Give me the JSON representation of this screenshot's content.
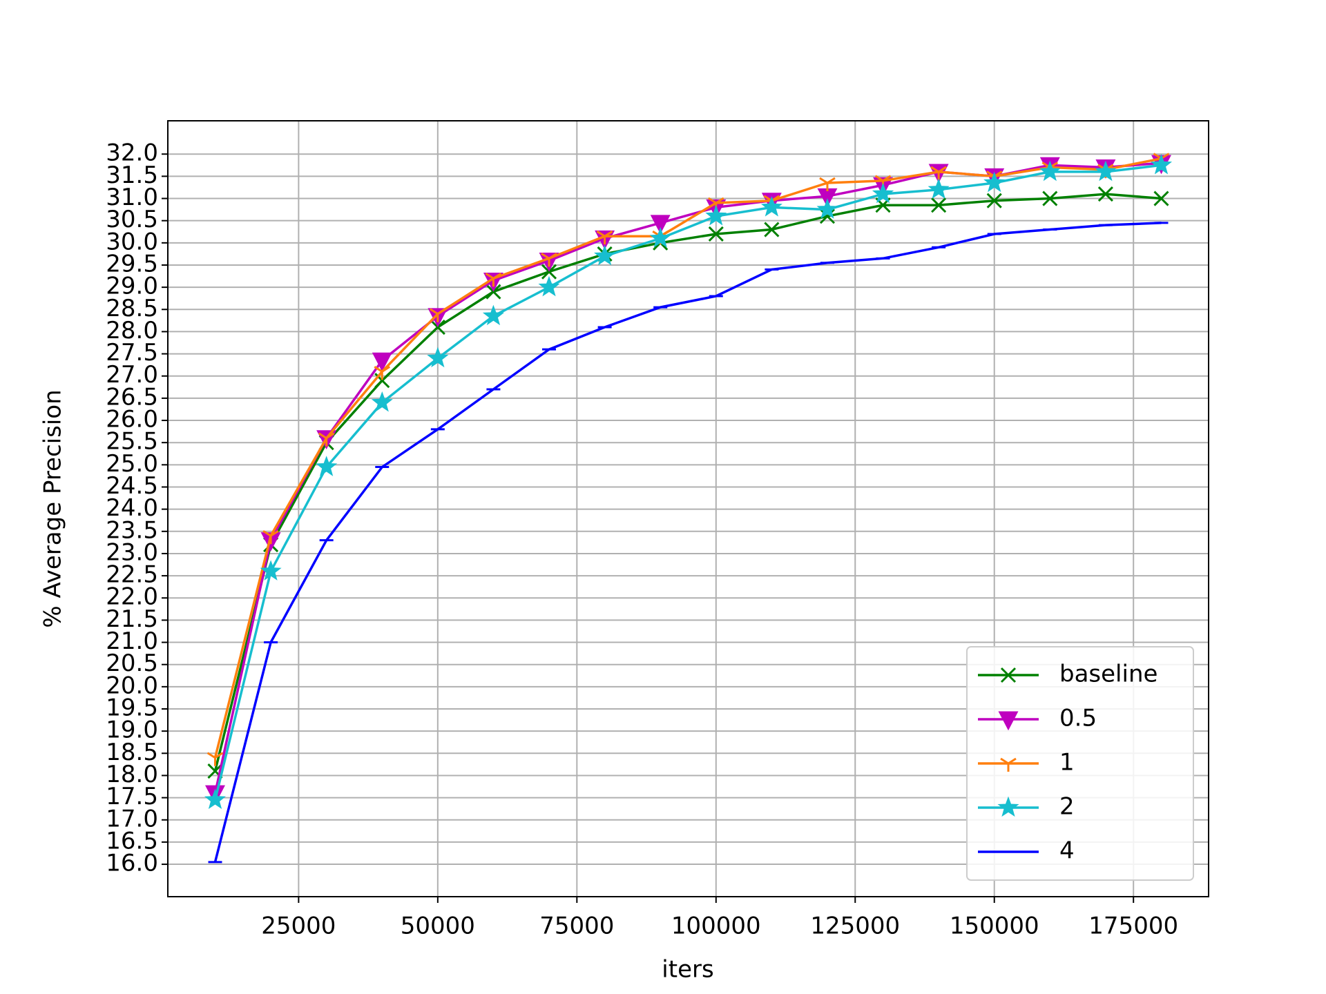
{
  "chart_data": {
    "type": "line",
    "xlabel": "iters",
    "ylabel": "% Average Precision",
    "x": [
      10000,
      20000,
      30000,
      40000,
      50000,
      60000,
      70000,
      80000,
      90000,
      100000,
      110000,
      120000,
      130000,
      140000,
      150000,
      160000,
      170000,
      180000
    ],
    "series": [
      {
        "name": "baseline",
        "color": "#008000",
        "marker": "x",
        "values": [
          18.1,
          23.2,
          25.5,
          26.9,
          28.1,
          28.9,
          29.35,
          29.75,
          30.0,
          30.2,
          30.3,
          30.6,
          30.85,
          30.85,
          30.95,
          31.0,
          31.1,
          31.0
        ]
      },
      {
        "name": "0.5",
        "color": "#bf00bf",
        "marker": "triangle_down",
        "values": [
          17.6,
          23.3,
          25.6,
          27.35,
          28.35,
          29.15,
          29.6,
          30.1,
          30.45,
          30.8,
          30.95,
          31.05,
          31.3,
          31.6,
          31.5,
          31.75,
          31.7,
          31.8
        ]
      },
      {
        "name": "1",
        "color": "#ff7f0e",
        "marker": "tri_down",
        "values": [
          18.4,
          23.4,
          25.6,
          27.1,
          28.4,
          29.2,
          29.65,
          30.15,
          30.15,
          30.9,
          30.95,
          31.35,
          31.4,
          31.6,
          31.5,
          31.7,
          31.65,
          31.9
        ]
      },
      {
        "name": "2",
        "color": "#17becf",
        "marker": "star",
        "values": [
          17.45,
          22.6,
          24.95,
          26.4,
          27.4,
          28.35,
          29.0,
          29.7,
          30.1,
          30.6,
          30.8,
          30.75,
          31.1,
          31.2,
          31.35,
          31.6,
          31.6,
          31.75
        ]
      },
      {
        "name": "4",
        "color": "#0000ff",
        "marker": "hline",
        "values": [
          16.05,
          21.0,
          23.3,
          24.95,
          25.8,
          26.7,
          27.6,
          28.1,
          28.55,
          28.8,
          29.4,
          29.55,
          29.65,
          29.9,
          30.2,
          30.3,
          30.4,
          30.45
        ]
      }
    ],
    "xlim": [
      1500,
      188500
    ],
    "ylim": [
      15.27,
      32.75
    ],
    "xticks": [
      25000,
      50000,
      75000,
      100000,
      125000,
      150000,
      175000
    ],
    "yticks": [
      {
        "value": 16,
        "label": "16.0"
      },
      16.5,
      {
        "value": 17,
        "label": "17.0"
      },
      17.5,
      {
        "value": 18,
        "label": "18.0"
      },
      18.5,
      {
        "value": 19,
        "label": "19.0"
      },
      19.5,
      {
        "value": 20,
        "label": "20.0"
      },
      20.5,
      {
        "value": 21,
        "label": "21.0"
      },
      21.5,
      {
        "value": 22,
        "label": "22.0"
      },
      22.5,
      {
        "value": 23,
        "label": "23.0"
      },
      23.5,
      {
        "value": 24,
        "label": "24.0"
      },
      24.5,
      {
        "value": 25,
        "label": "25.0"
      },
      25.5,
      {
        "value": 26,
        "label": "26.0"
      },
      26.5,
      {
        "value": 27,
        "label": "27.0"
      },
      27.5,
      {
        "value": 28,
        "label": "28.0"
      },
      28.5,
      {
        "value": 29,
        "label": "29.0"
      },
      29.5,
      {
        "value": 30,
        "label": "30.0"
      },
      30.5,
      {
        "value": 31,
        "label": "31.0"
      },
      31.5,
      {
        "value": 32,
        "label": "32.0"
      }
    ],
    "grid": true,
    "legend": "lower right"
  }
}
